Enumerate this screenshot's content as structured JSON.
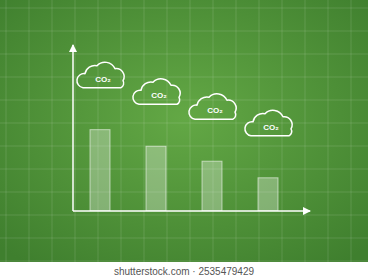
{
  "chart_data": {
    "type": "bar",
    "categories": [
      null,
      null,
      null,
      null
    ],
    "values": [
      49,
      39,
      30,
      20
    ],
    "color": "#ffffff",
    "ylim": [
      0,
      100
    ],
    "tick_labels": false,
    "grid": true,
    "annotations": [
      "CO₂",
      "CO₂",
      "CO₂",
      "CO₂"
    ],
    "caption": "shutterstock.com · 2535479429"
  }
}
